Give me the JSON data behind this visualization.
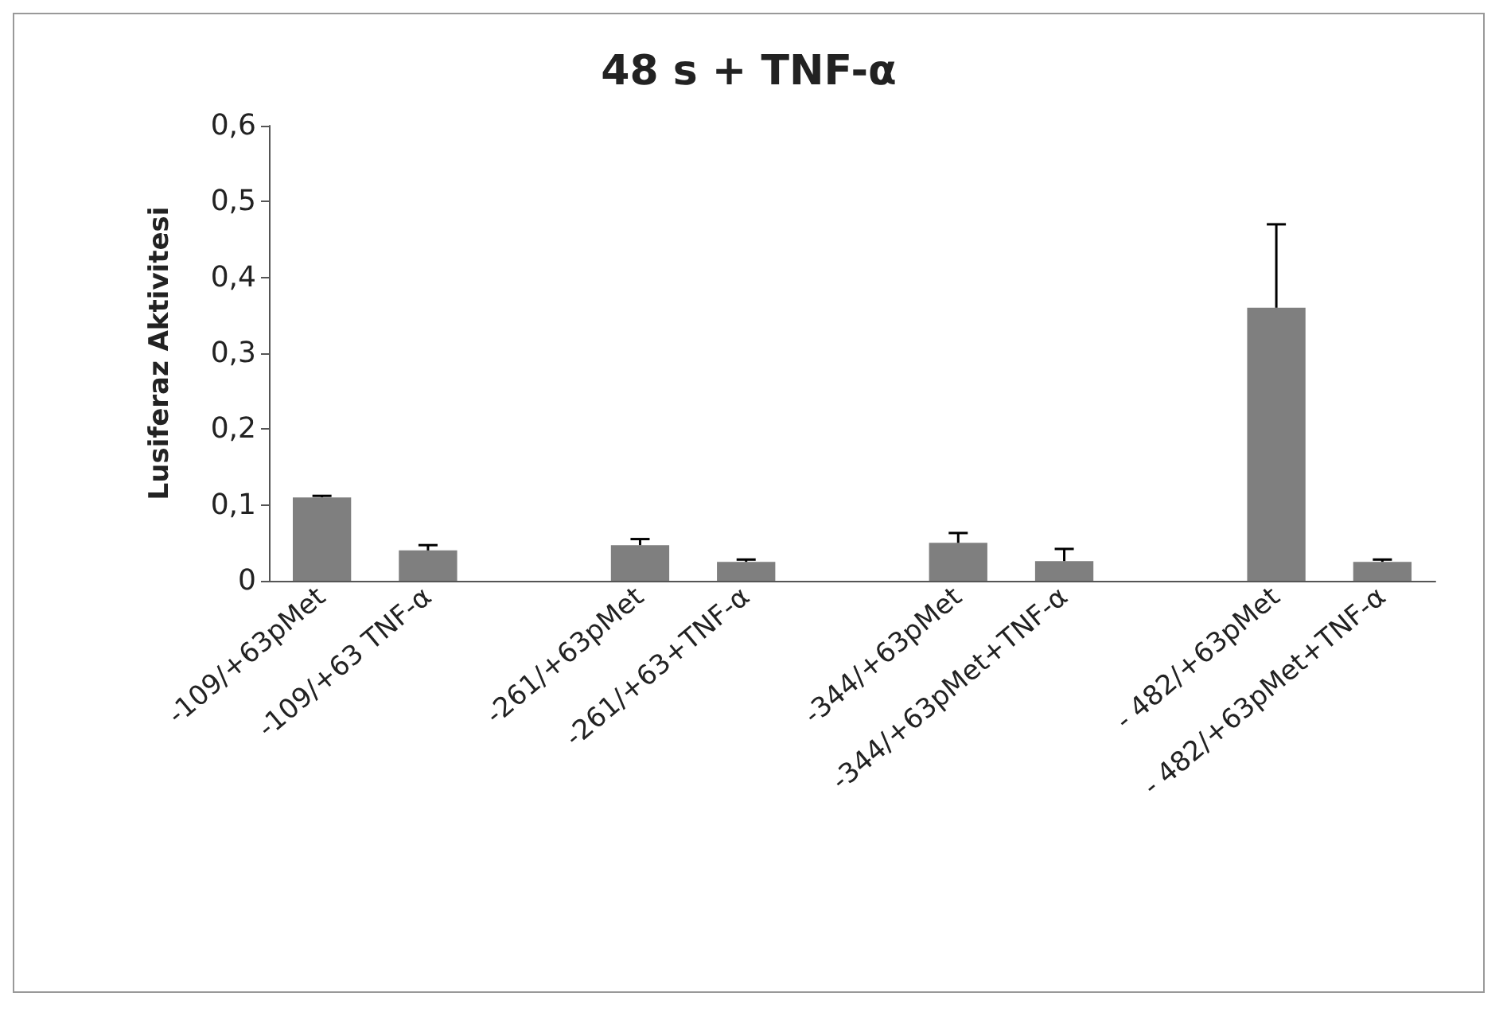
{
  "chart_data": {
    "type": "bar",
    "title": "48 s + TNF-α",
    "ylabel": "Lusiferaz Aktivitesi",
    "categories": [
      "-109/+63pMet",
      "-109/+63 TNF-α",
      null,
      "-261/+63pMet",
      "-261/+63+TNF-α",
      null,
      "-344/+63pMet",
      "-344/+63pMet+TNF-α",
      null,
      "- 482/+63pMet",
      "- 482/+63pMet+TNF-α"
    ],
    "values": [
      0.11,
      0.04,
      null,
      0.047,
      0.025,
      null,
      0.05,
      0.026,
      null,
      0.36,
      0.025
    ],
    "errors": [
      0.002,
      0.007,
      null,
      0.008,
      0.003,
      null,
      0.013,
      0.016,
      null,
      0.11,
      0.003
    ],
    "color": "#7f7f7f",
    "ylim": [
      0,
      0.6
    ],
    "yticks": [
      {
        "value": 0,
        "label": "0"
      },
      {
        "value": 0.1,
        "label": "0,1"
      },
      {
        "value": 0.2,
        "label": "0,2"
      },
      {
        "value": 0.3,
        "label": "0,3"
      },
      {
        "value": 0.4,
        "label": "0,4"
      },
      {
        "value": 0.5,
        "label": "0,5"
      },
      {
        "value": 0.6,
        "label": "0,6"
      }
    ],
    "grid": false
  }
}
